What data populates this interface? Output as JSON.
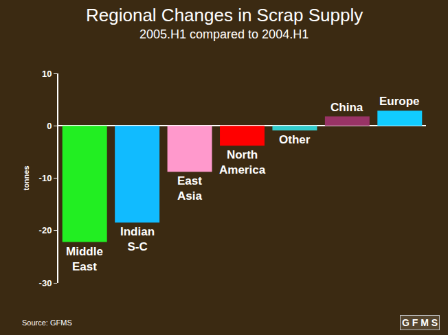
{
  "chart_data": {
    "type": "bar",
    "title": "Regional Changes in Scrap Supply",
    "subtitle": "2005.H1 compared to 2004.H1",
    "y_label": "tonnes",
    "source": "Source: GFMS",
    "logo": "GFMS",
    "categories": [
      "Middle East",
      "Indian S-C",
      "East Asia",
      "North America",
      "Other",
      "China",
      "Europe"
    ],
    "values": [
      -22.2,
      -18.5,
      -8.8,
      -3.8,
      -0.9,
      1.8,
      2.9
    ],
    "colors": [
      "#22ee22",
      "#11bbff",
      "#ff99cc",
      "#ff0000",
      "#33cccc",
      "#993366",
      "#11ccff"
    ],
    "ylim": [
      -30,
      10
    ],
    "yticks": [
      -30,
      -20,
      -10,
      0,
      10
    ],
    "grid": false,
    "tick_labels": "y"
  }
}
